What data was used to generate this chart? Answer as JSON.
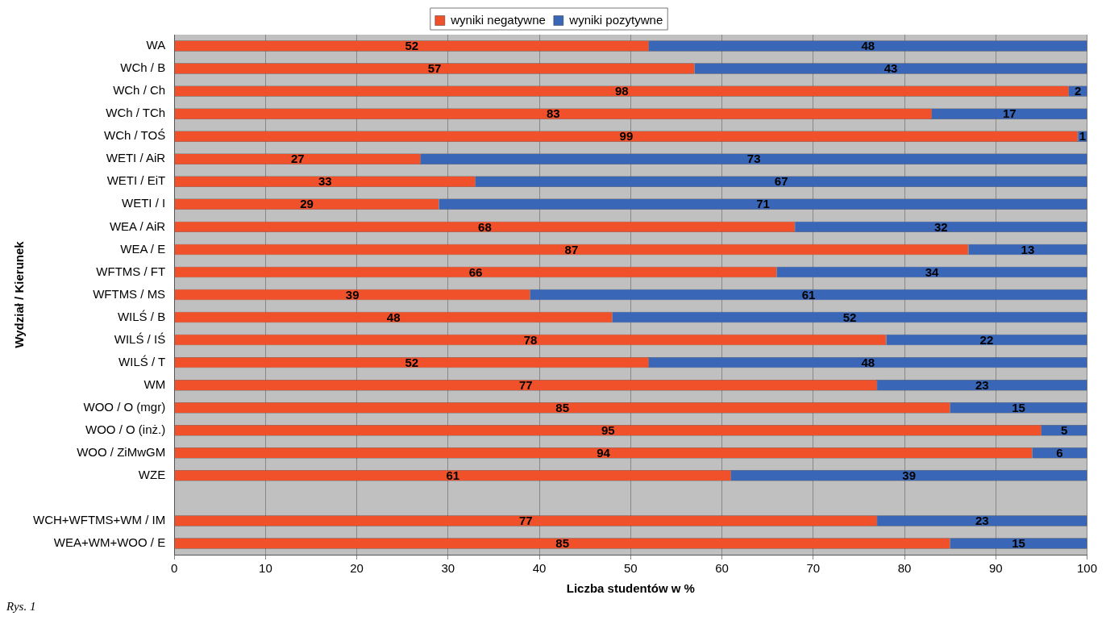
{
  "chart_data": {
    "type": "bar",
    "orientation": "horizontal",
    "stacked": true,
    "categories": [
      "WA",
      "WCh / B",
      "WCh / Ch",
      "WCh / TCh",
      "WCh / TOŚ",
      "WETI / AiR",
      "WETI / EiT",
      "WETI / I",
      "WEA / AiR",
      "WEA / E",
      "WFTMS / FT",
      "WFTMS / MS",
      "WILŚ / B",
      "WILŚ / IŚ",
      "WILŚ / T",
      "WM",
      "WOO / O (mgr)",
      "WOO / O (inż.)",
      "WOO / ZiMwGM",
      "WZE",
      null,
      "WCH+WFTMS+WM / IM",
      "WEA+WM+WOO / E"
    ],
    "series": [
      {
        "name": "wyniki negatywne",
        "color": "#f0502a",
        "values": [
          52,
          57,
          98,
          83,
          99,
          27,
          33,
          29,
          68,
          87,
          66,
          39,
          48,
          78,
          52,
          77,
          85,
          95,
          94,
          61,
          null,
          77,
          85
        ]
      },
      {
        "name": "wyniki pozytywne",
        "color": "#3a66b8",
        "values": [
          48,
          43,
          2,
          17,
          1,
          73,
          67,
          71,
          32,
          13,
          34,
          61,
          52,
          22,
          48,
          23,
          15,
          5,
          6,
          39,
          null,
          23,
          15
        ]
      }
    ],
    "xlim": [
      0,
      100
    ],
    "xticks": [
      0,
      10,
      20,
      30,
      40,
      50,
      60,
      70,
      80,
      90,
      100
    ],
    "xlabel": "Liczba studentów w %",
    "ylabel": "Wydział / Kierunek",
    "grid": "x",
    "legend": "top",
    "data_labels": true,
    "annotations": [
      "Rys. 1"
    ]
  }
}
